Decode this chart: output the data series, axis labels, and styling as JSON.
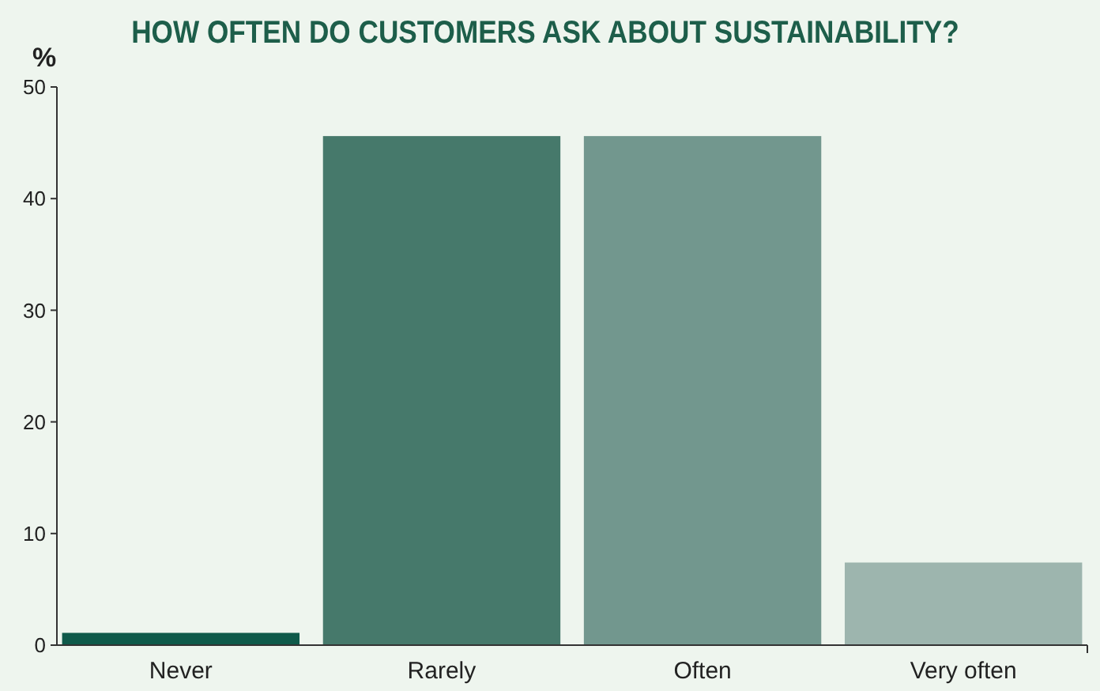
{
  "chart_data": {
    "type": "bar",
    "title": "HOW OFTEN DO CUSTOMERS ASK ABOUT SUSTAINABILITY?",
    "ylabel": "%",
    "categories": [
      "Never",
      "Rarely",
      "Often",
      "Very often"
    ],
    "values": [
      1.1,
      45.6,
      45.6,
      7.4
    ],
    "colors": [
      "#0f5a4a",
      "#46796b",
      "#72978e",
      "#9db5ae"
    ],
    "ylim": [
      0,
      50
    ],
    "yticks": [
      0,
      10,
      20,
      30,
      40,
      50
    ],
    "grid": false
  }
}
